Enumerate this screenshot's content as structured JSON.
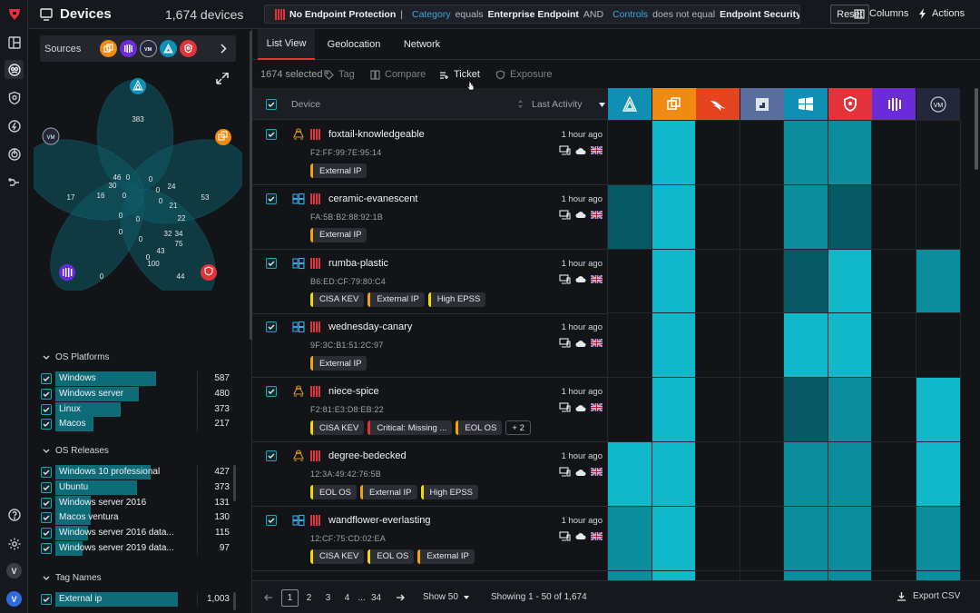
{
  "rail": {
    "icons": [
      "logo-icon",
      "dashboard-icon",
      "devices-icon",
      "shield-icon",
      "bolt-icon",
      "target-icon",
      "integrations-icon"
    ],
    "bottom_icons": [
      "help-icon",
      "settings-icon"
    ],
    "avatars": [
      "V",
      "V"
    ]
  },
  "header": {
    "title": "Devices",
    "count": "1,674 devices",
    "query": {
      "chip": "No Endpoint Protection",
      "f1_field": "Category",
      "f1_op": "equals",
      "f1_value": "Enterprise Endpoint",
      "conj": "AND",
      "f2_field": "Controls",
      "f2_op": "does not equal",
      "f2_value": "Endpoint Security"
    },
    "reset": "Reset",
    "columns": "Columns",
    "actions": "Actions"
  },
  "filters": {
    "sources_label": "Sources",
    "venn_labels": [
      "383",
      "46",
      "30",
      "16",
      "17",
      "53",
      "24",
      "21",
      "22",
      "32",
      "34",
      "75",
      "43",
      "100",
      "44",
      "0",
      "0",
      "0",
      "0",
      "0",
      "0",
      "0",
      "0",
      "0",
      "0",
      "0"
    ],
    "os_platforms": {
      "title": "OS Platforms",
      "items": [
        {
          "label": "Windows",
          "value": "587",
          "fill": 0.74
        },
        {
          "label": "Windows server",
          "value": "480",
          "fill": 0.61
        },
        {
          "label": "Linux",
          "value": "373",
          "fill": 0.48
        },
        {
          "label": "Macos",
          "value": "217",
          "fill": 0.28
        }
      ]
    },
    "os_releases": {
      "title": "OS Releases",
      "items": [
        {
          "label": "Windows 10 professional",
          "value": "427",
          "fill": 0.7
        },
        {
          "label": "Ubuntu",
          "value": "373",
          "fill": 0.6
        },
        {
          "label": "Windows server 2016",
          "value": "131",
          "fill": 0.26
        },
        {
          "label": "Macos ventura",
          "value": "130",
          "fill": 0.26
        },
        {
          "label": "Windows server 2016 data...",
          "value": "115",
          "fill": 0.24
        },
        {
          "label": "Windows server 2019 data...",
          "value": "97",
          "fill": 0.2
        }
      ]
    },
    "tag_names": {
      "title": "Tag Names",
      "items": [
        {
          "label": "External ip",
          "value": "1,003",
          "fill": 0.9
        }
      ]
    }
  },
  "tabs": [
    "List View",
    "Geolocation",
    "Network"
  ],
  "toolbar": {
    "selected": "1674 selected",
    "tag": "Tag",
    "compare": "Compare",
    "ticket": "Ticket",
    "exposure": "Exposure"
  },
  "table": {
    "col_device": "Device",
    "col_activity": "Last Activity",
    "source_columns": [
      {
        "name": "azure-icon",
        "color": "#0e8fb3"
      },
      {
        "name": "office-icon",
        "color": "#ef8a12"
      },
      {
        "name": "falcon-icon",
        "color": "#e4441f"
      },
      {
        "name": "intune-icon",
        "color": "#5b6f9e"
      },
      {
        "name": "windows-icon",
        "color": "#0e8fb3"
      },
      {
        "name": "tenable-icon",
        "color": "#e2323a"
      },
      {
        "name": "qualys-icon",
        "color": "#6c2bd9"
      },
      {
        "name": "vmware-icon",
        "color": "#23273a"
      }
    ],
    "rows": [
      {
        "name": "foxtail-knowledgeable",
        "mac": "F2:FF:99:7E:95:14",
        "time": "1 hour ago",
        "os": "linux",
        "tags": [
          {
            "t": "External IP",
            "c": "#f2a20c"
          }
        ],
        "more": "",
        "cells": [
          "n",
          "b",
          "n",
          "n",
          "m",
          "m",
          "n",
          "n"
        ]
      },
      {
        "name": "ceramic-evanescent",
        "mac": "FA:5B:B2:88:92:1B",
        "time": "1 hour ago",
        "os": "windows",
        "tags": [
          {
            "t": "External IP",
            "c": "#f2a20c"
          }
        ],
        "more": "",
        "cells": [
          "d",
          "b",
          "n",
          "n",
          "m",
          "d",
          "n",
          "n"
        ]
      },
      {
        "name": "rumba-plastic",
        "mac": "B6:ED:CF:79:80:C4",
        "time": "1 hour ago",
        "os": "windows",
        "tags": [
          {
            "t": "CISA KEV",
            "c": "#f2d70c"
          },
          {
            "t": "External IP",
            "c": "#f2a20c"
          },
          {
            "t": "High EPSS",
            "c": "#f2d70c"
          }
        ],
        "more": "",
        "cells": [
          "n",
          "b",
          "n",
          "n",
          "d",
          "b",
          "n",
          "m"
        ]
      },
      {
        "name": "wednesday-canary",
        "mac": "9F:3C:B1:51:2C:97",
        "time": "1 hour ago",
        "os": "windows",
        "tags": [
          {
            "t": "External IP",
            "c": "#f2a20c"
          }
        ],
        "more": "",
        "cells": [
          "n",
          "b",
          "n",
          "n",
          "b",
          "b",
          "n",
          "n"
        ]
      },
      {
        "name": "niece-spice",
        "mac": "F2:81:E3:D8:EB:22",
        "time": "1 hour ago",
        "os": "linux",
        "tags": [
          {
            "t": "CISA KEV",
            "c": "#f2d70c"
          },
          {
            "t": "Critical: Missing ...",
            "c": "#e2323a"
          },
          {
            "t": "EOL OS",
            "c": "#f2a20c"
          }
        ],
        "more": "+ 2",
        "cells": [
          "n",
          "b",
          "n",
          "n",
          "d",
          "m",
          "n",
          "b"
        ]
      },
      {
        "name": "degree-bedecked",
        "mac": "12:3A:49:42:76:5B",
        "time": "1 hour ago",
        "os": "linux",
        "tags": [
          {
            "t": "EOL OS",
            "c": "#f2d70c"
          },
          {
            "t": "External IP",
            "c": "#f2a20c"
          },
          {
            "t": "High EPSS",
            "c": "#f2d70c"
          }
        ],
        "more": "",
        "cells": [
          "b",
          "b",
          "n",
          "n",
          "m",
          "m",
          "n",
          "b"
        ]
      },
      {
        "name": "wandflower-everlasting",
        "mac": "12:CF:75:CD:02:EA",
        "time": "1 hour ago",
        "os": "windows",
        "tags": [
          {
            "t": "CISA KEV",
            "c": "#f2d70c"
          },
          {
            "t": "EOL OS",
            "c": "#f2d70c"
          },
          {
            "t": "External IP",
            "c": "#f2a20c"
          }
        ],
        "more": "",
        "cells": [
          "m",
          "b",
          "n",
          "n",
          "m",
          "m",
          "n",
          "m"
        ]
      }
    ]
  },
  "footer": {
    "pages": [
      "1",
      "2",
      "3",
      "4",
      "...",
      "34"
    ],
    "show": "Show 50",
    "showing": "Showing 1 - 50 of 1,674",
    "export": "Export CSV"
  },
  "colors": {
    "accent": "#e2323a",
    "cell_bright": "#10b8c9",
    "cell_mid": "#0b8d9c",
    "cell_dark": "#075a64",
    "cell_none": "#121418"
  }
}
